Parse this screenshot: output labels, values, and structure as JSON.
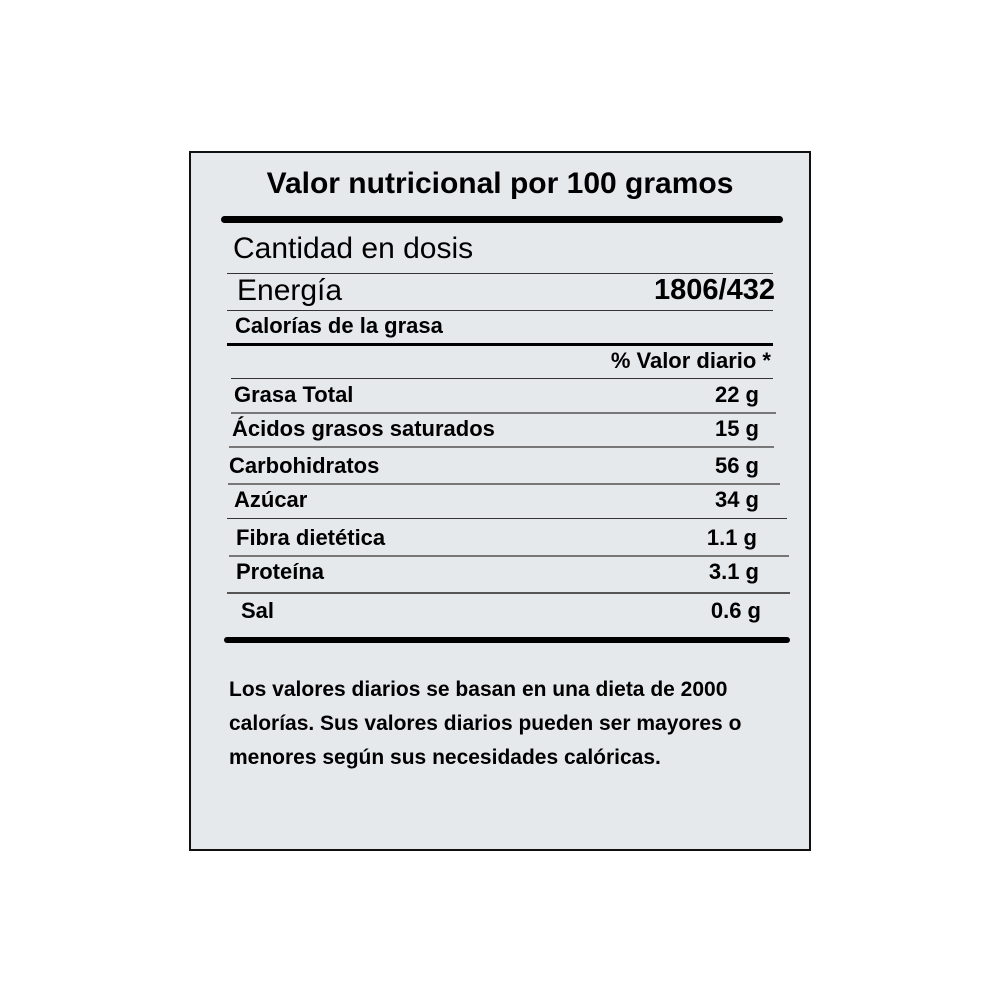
{
  "title": "Valor nutricional por 100 gramos",
  "serving_label": "Cantidad en dosis",
  "energy": {
    "label": "Energía",
    "value": "1806/432"
  },
  "fat_calories_label": "Calorías de la grasa",
  "daily_value_header": "% Valor diario *",
  "nutrients": [
    {
      "label": "Grasa Total",
      "value": "22 g"
    },
    {
      "label": "Ácidos grasos saturados",
      "value": "15 g"
    },
    {
      "label": "Carbohidratos",
      "value": "56 g"
    },
    {
      "label": "Azúcar",
      "value": "34 g"
    },
    {
      "label": "Fibra dietética",
      "value": "1.1 g"
    },
    {
      "label": "Proteína",
      "value": "3.1 g"
    },
    {
      "label": "Sal",
      "value": "0.6 g"
    }
  ],
  "footnote": "Los valores diarios se basan en una dieta de 2000 calorías. Sus valores diarios pueden ser mayores o menores según sus necesidades calóricas."
}
